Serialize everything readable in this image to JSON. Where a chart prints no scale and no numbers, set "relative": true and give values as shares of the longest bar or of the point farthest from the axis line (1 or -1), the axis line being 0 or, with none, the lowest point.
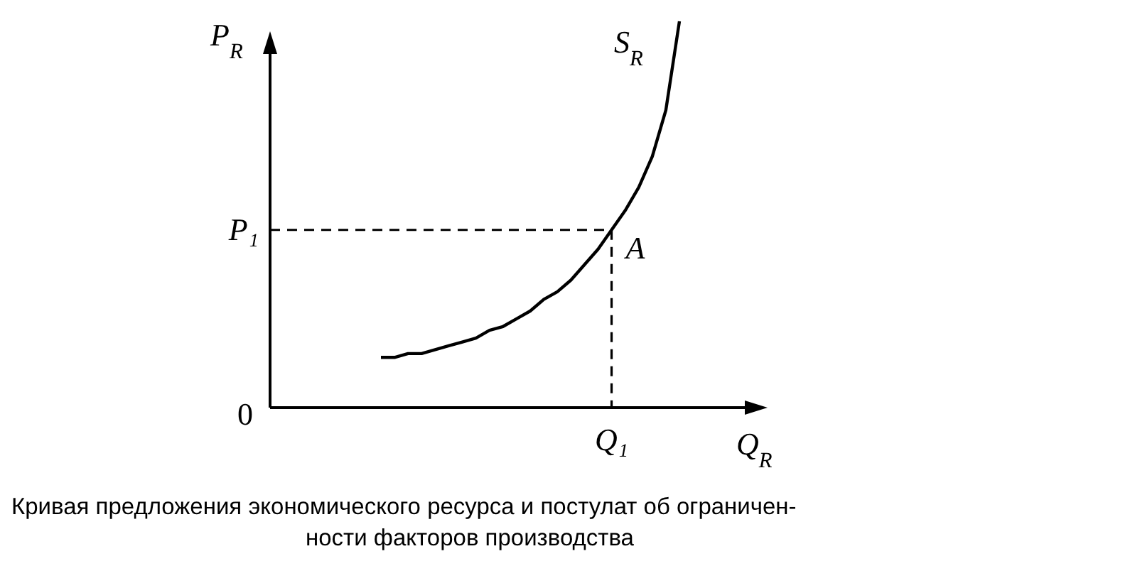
{
  "chart_data": {
    "type": "line",
    "relative": true,
    "xlabel": "Q$_{R}$",
    "ylabel": "P$_{R}$",
    "categories": [
      null,
      null,
      null,
      null,
      null,
      null,
      null,
      null,
      null,
      null,
      null,
      null,
      null,
      null,
      null,
      null,
      null,
      null,
      null,
      null,
      null,
      null,
      null
    ],
    "series": [
      {
        "name": "S$_{R}$",
        "color": "#000000",
        "values": [
          0.13,
          0.13,
          0.14,
          0.14,
          0.15,
          0.16,
          0.17,
          0.18,
          0.2,
          0.21,
          0.23,
          0.25,
          0.28,
          0.3,
          0.33,
          0.37,
          0.41,
          0.46,
          0.51,
          0.57,
          0.65,
          0.77,
          1
        ]
      }
    ],
    "ref_lines": [
      {
        "axis": "y",
        "value": 0.46,
        "label": "P₁",
        "line_style": "dashed",
        "color": "#000000"
      }
    ],
    "annotations": [
      "A",
      "Q₁",
      "0",
      "Кривая предложения экономического ресурса и постулат об ограничен-\nности факторов производства"
    ]
  }
}
